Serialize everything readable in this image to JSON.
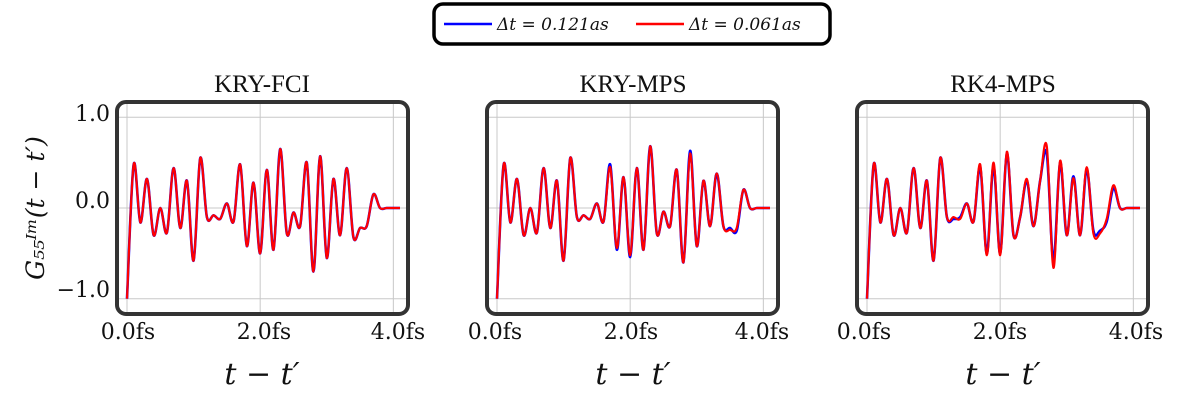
{
  "chart_data": {
    "type": "line",
    "y_label": "G₅₅ᴵᵐ(t − t′)",
    "x_label": "t − t′",
    "x_tick_labels": [
      "0.0fs",
      "2.0fs",
      "4.0fs"
    ],
    "y_tick_labels": [
      "1.0",
      "0.0",
      "−1.0"
    ],
    "x_ticks": [
      0.0,
      2.0,
      4.0
    ],
    "y_ticks": [
      1.0,
      0.0,
      -1.0
    ],
    "xlim": [
      0.0,
      4.1
    ],
    "ylim": [
      -1.08,
      1.08
    ],
    "grid": true,
    "legend_position": "top-center",
    "legend": [
      {
        "label": "Δt = 0.121as",
        "color": "#0000ff"
      },
      {
        "label": "Δt = 0.061as",
        "color": "#ff0000"
      }
    ],
    "panels": [
      {
        "title": "KRY-FCI",
        "series": [
          {
            "name": "Δt = 0.121as",
            "color": "#0000ff",
            "x": [
              0.0,
              0.1,
              0.2,
              0.3,
              0.4,
              0.5,
              0.6,
              0.7,
              0.8,
              0.9,
              1.0,
              1.1,
              1.2,
              1.3,
              1.4,
              1.5,
              1.6,
              1.7,
              1.8,
              1.9,
              2.0,
              2.1,
              2.2,
              2.3,
              2.4,
              2.5,
              2.6,
              2.7,
              2.8,
              2.9,
              3.0,
              3.1,
              3.2,
              3.3,
              3.4,
              3.5,
              3.6,
              3.7,
              3.8,
              3.9,
              4.0,
              4.1
            ],
            "y": [
              -1.0,
              0.48,
              -0.16,
              0.32,
              -0.3,
              0.0,
              -0.27,
              0.44,
              -0.22,
              0.3,
              -0.58,
              0.55,
              -0.1,
              -0.08,
              -0.12,
              0.05,
              -0.15,
              0.48,
              -0.42,
              0.28,
              -0.5,
              0.42,
              -0.46,
              0.65,
              -0.28,
              -0.05,
              -0.2,
              0.5,
              -0.7,
              0.57,
              -0.55,
              0.32,
              -0.3,
              0.44,
              -0.32,
              -0.22,
              -0.2,
              0.15,
              0.0,
              0.0,
              0.0,
              0.0
            ]
          },
          {
            "name": "Δt = 0.061as",
            "color": "#ff0000",
            "x": [
              0.0,
              0.1,
              0.2,
              0.3,
              0.4,
              0.5,
              0.6,
              0.7,
              0.8,
              0.9,
              1.0,
              1.1,
              1.2,
              1.3,
              1.4,
              1.5,
              1.6,
              1.7,
              1.8,
              1.9,
              2.0,
              2.1,
              2.2,
              2.3,
              2.4,
              2.5,
              2.6,
              2.7,
              2.8,
              2.9,
              3.0,
              3.1,
              3.2,
              3.3,
              3.4,
              3.5,
              3.6,
              3.7,
              3.8,
              3.9,
              4.0,
              4.1
            ],
            "y": [
              -1.0,
              0.48,
              -0.16,
              0.32,
              -0.3,
              0.0,
              -0.27,
              0.44,
              -0.22,
              0.3,
              -0.58,
              0.55,
              -0.1,
              -0.08,
              -0.12,
              0.05,
              -0.15,
              0.48,
              -0.42,
              0.28,
              -0.5,
              0.42,
              -0.46,
              0.65,
              -0.28,
              -0.05,
              -0.2,
              0.5,
              -0.7,
              0.57,
              -0.55,
              0.32,
              -0.3,
              0.44,
              -0.32,
              -0.22,
              -0.2,
              0.15,
              0.0,
              0.0,
              0.0,
              0.0
            ]
          }
        ]
      },
      {
        "title": "KRY-MPS",
        "series": [
          {
            "name": "Δt = 0.121as",
            "color": "#0000ff",
            "x": [
              0.0,
              0.1,
              0.2,
              0.3,
              0.4,
              0.5,
              0.6,
              0.7,
              0.8,
              0.9,
              1.0,
              1.1,
              1.2,
              1.3,
              1.4,
              1.5,
              1.6,
              1.7,
              1.8,
              1.9,
              2.0,
              2.1,
              2.2,
              2.3,
              2.4,
              2.5,
              2.6,
              2.7,
              2.8,
              2.9,
              3.0,
              3.1,
              3.2,
              3.3,
              3.4,
              3.5,
              3.6,
              3.7,
              3.8,
              3.9,
              4.0,
              4.1
            ],
            "y": [
              -1.0,
              0.48,
              -0.16,
              0.32,
              -0.3,
              0.0,
              -0.27,
              0.44,
              -0.22,
              0.3,
              -0.58,
              0.55,
              -0.1,
              -0.08,
              -0.12,
              0.05,
              -0.15,
              0.48,
              -0.46,
              0.34,
              -0.54,
              0.44,
              -0.46,
              0.68,
              -0.28,
              -0.04,
              -0.2,
              0.42,
              -0.6,
              0.63,
              -0.42,
              0.3,
              -0.2,
              0.38,
              -0.2,
              -0.22,
              -0.25,
              0.2,
              0.0,
              0.0,
              0.0,
              0.0
            ]
          },
          {
            "name": "Δt = 0.061as",
            "color": "#ff0000",
            "x": [
              0.0,
              0.1,
              0.2,
              0.3,
              0.4,
              0.5,
              0.6,
              0.7,
              0.8,
              0.9,
              1.0,
              1.1,
              1.2,
              1.3,
              1.4,
              1.5,
              1.6,
              1.7,
              1.8,
              1.9,
              2.0,
              2.1,
              2.2,
              2.3,
              2.4,
              2.5,
              2.6,
              2.7,
              2.8,
              2.9,
              3.0,
              3.1,
              3.2,
              3.3,
              3.4,
              3.5,
              3.6,
              3.7,
              3.8,
              3.9,
              4.0,
              4.1
            ],
            "y": [
              -1.0,
              0.48,
              -0.16,
              0.32,
              -0.3,
              0.0,
              -0.27,
              0.44,
              -0.22,
              0.3,
              -0.58,
              0.55,
              -0.1,
              -0.08,
              -0.12,
              0.05,
              -0.15,
              0.45,
              -0.44,
              0.34,
              -0.52,
              0.44,
              -0.46,
              0.68,
              -0.28,
              -0.04,
              -0.2,
              0.42,
              -0.6,
              0.6,
              -0.42,
              0.3,
              -0.2,
              0.38,
              -0.2,
              -0.24,
              -0.22,
              0.2,
              0.0,
              0.0,
              0.0,
              0.0
            ]
          }
        ]
      },
      {
        "title": "RK4-MPS",
        "series": [
          {
            "name": "Δt = 0.121as",
            "color": "#0000ff",
            "x": [
              0.0,
              0.1,
              0.2,
              0.3,
              0.4,
              0.5,
              0.6,
              0.7,
              0.8,
              0.9,
              1.0,
              1.1,
              1.2,
              1.3,
              1.4,
              1.5,
              1.6,
              1.7,
              1.8,
              1.9,
              2.0,
              2.1,
              2.2,
              2.3,
              2.4,
              2.5,
              2.6,
              2.7,
              2.8,
              2.9,
              3.0,
              3.1,
              3.2,
              3.3,
              3.4,
              3.5,
              3.6,
              3.7,
              3.8,
              3.9,
              4.0,
              4.1
            ],
            "y": [
              -1.0,
              0.48,
              -0.16,
              0.32,
              -0.3,
              0.0,
              -0.27,
              0.44,
              -0.22,
              0.3,
              -0.58,
              0.55,
              -0.1,
              -0.12,
              -0.1,
              0.05,
              -0.15,
              0.45,
              -0.5,
              0.46,
              -0.5,
              0.6,
              -0.3,
              -0.1,
              0.3,
              -0.2,
              0.3,
              0.6,
              -0.58,
              0.5,
              -0.3,
              0.35,
              -0.3,
              0.42,
              -0.25,
              -0.25,
              -0.15,
              0.22,
              0.0,
              0.0,
              0.0,
              0.0
            ]
          },
          {
            "name": "Δt = 0.061as",
            "color": "#ff0000",
            "x": [
              0.0,
              0.1,
              0.2,
              0.3,
              0.4,
              0.5,
              0.6,
              0.7,
              0.8,
              0.9,
              1.0,
              1.1,
              1.2,
              1.3,
              1.4,
              1.5,
              1.6,
              1.7,
              1.8,
              1.9,
              2.0,
              2.1,
              2.2,
              2.3,
              2.4,
              2.5,
              2.6,
              2.7,
              2.8,
              2.9,
              3.0,
              3.1,
              3.2,
              3.3,
              3.4,
              3.5,
              3.6,
              3.7,
              3.8,
              3.9,
              4.0,
              4.1
            ],
            "y": [
              -1.0,
              0.48,
              -0.16,
              0.32,
              -0.3,
              0.0,
              -0.27,
              0.44,
              -0.22,
              0.3,
              -0.58,
              0.55,
              -0.1,
              -0.1,
              -0.12,
              0.05,
              -0.15,
              0.48,
              -0.52,
              0.5,
              -0.52,
              0.62,
              -0.3,
              -0.1,
              0.32,
              -0.2,
              0.3,
              0.68,
              -0.66,
              0.52,
              -0.3,
              0.33,
              -0.3,
              0.45,
              -0.28,
              -0.28,
              -0.12,
              0.25,
              0.0,
              0.0,
              0.0,
              0.0
            ]
          }
        ]
      }
    ]
  }
}
